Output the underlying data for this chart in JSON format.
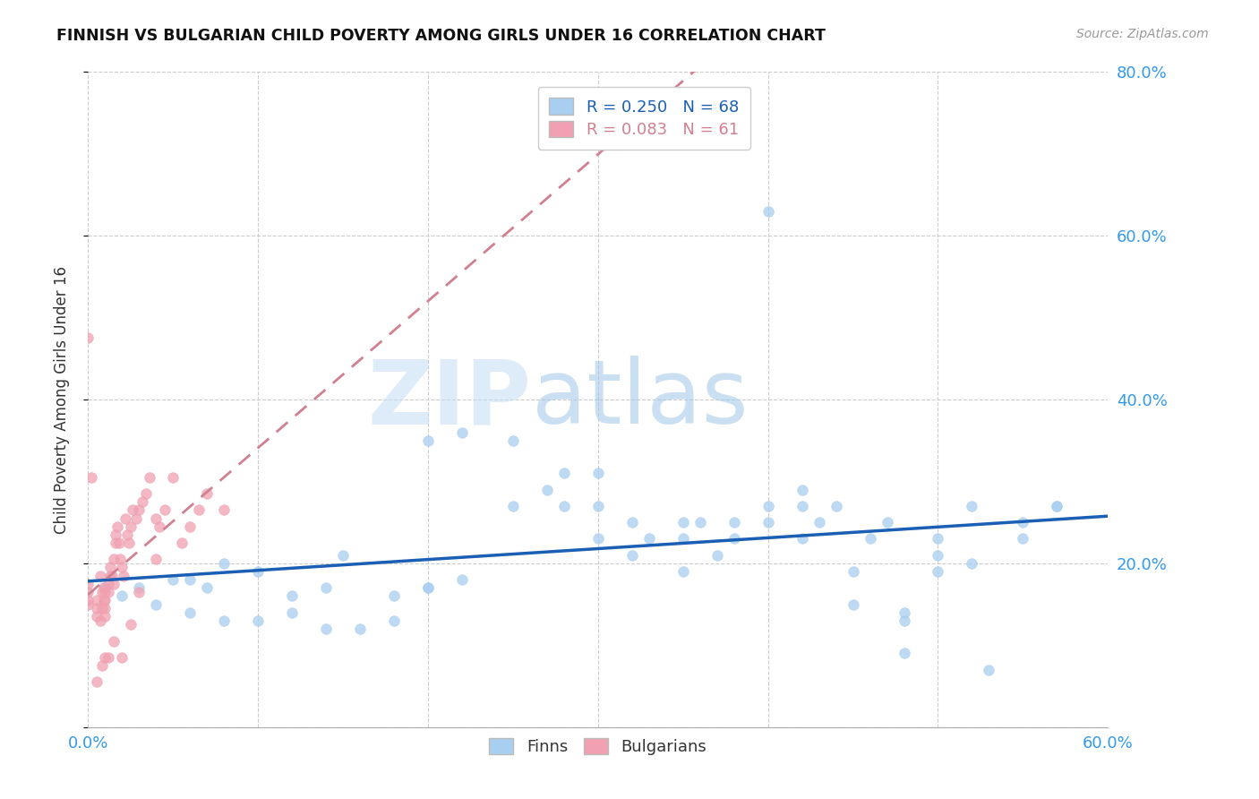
{
  "title": "FINNISH VS BULGARIAN CHILD POVERTY AMONG GIRLS UNDER 16 CORRELATION CHART",
  "source": "Source: ZipAtlas.com",
  "ylabel": "Child Poverty Among Girls Under 16",
  "xlim": [
    0.0,
    0.6
  ],
  "ylim": [
    0.0,
    0.8
  ],
  "xticks": [
    0.0,
    0.1,
    0.2,
    0.3,
    0.4,
    0.5,
    0.6
  ],
  "xticklabels": [
    "0.0%",
    "",
    "",
    "",
    "",
    "",
    "60.0%"
  ],
  "yticks_left": [
    0.0,
    0.2,
    0.4,
    0.6,
    0.8
  ],
  "yticks_right": [
    0.2,
    0.4,
    0.6,
    0.8
  ],
  "yticklabels_right": [
    "20.0%",
    "40.0%",
    "60.0%",
    "80.0%"
  ],
  "background_color": "#ffffff",
  "grid_color": "#cccccc",
  "finn_color": "#a8cef0",
  "bulg_color": "#f0a0b0",
  "finn_line_color": "#1a5fb4",
  "bulg_line_color": "#d08090",
  "scatter_size": 70,
  "finn_x": [
    0.01,
    0.02,
    0.03,
    0.04,
    0.05,
    0.06,
    0.07,
    0.08,
    0.1,
    0.12,
    0.14,
    0.15,
    0.18,
    0.2,
    0.2,
    0.22,
    0.22,
    0.25,
    0.25,
    0.27,
    0.28,
    0.28,
    0.3,
    0.3,
    0.32,
    0.32,
    0.33,
    0.35,
    0.35,
    0.36,
    0.37,
    0.38,
    0.38,
    0.4,
    0.4,
    0.42,
    0.42,
    0.43,
    0.44,
    0.45,
    0.46,
    0.47,
    0.48,
    0.48,
    0.5,
    0.5,
    0.52,
    0.53,
    0.55,
    0.57,
    0.06,
    0.08,
    0.1,
    0.12,
    0.14,
    0.16,
    0.18,
    0.2,
    0.3,
    0.35,
    0.4,
    0.42,
    0.45,
    0.48,
    0.5,
    0.52,
    0.55,
    0.57
  ],
  "finn_y": [
    0.17,
    0.16,
    0.17,
    0.15,
    0.18,
    0.18,
    0.17,
    0.2,
    0.19,
    0.16,
    0.17,
    0.21,
    0.16,
    0.35,
    0.17,
    0.36,
    0.18,
    0.35,
    0.27,
    0.29,
    0.31,
    0.27,
    0.27,
    0.23,
    0.25,
    0.21,
    0.23,
    0.23,
    0.25,
    0.25,
    0.21,
    0.23,
    0.25,
    0.25,
    0.27,
    0.27,
    0.23,
    0.25,
    0.27,
    0.15,
    0.23,
    0.25,
    0.09,
    0.13,
    0.23,
    0.21,
    0.27,
    0.07,
    0.23,
    0.27,
    0.14,
    0.13,
    0.13,
    0.14,
    0.12,
    0.12,
    0.13,
    0.17,
    0.31,
    0.19,
    0.63,
    0.29,
    0.19,
    0.14,
    0.19,
    0.2,
    0.25,
    0.27
  ],
  "bulg_x": [
    0.0,
    0.0,
    0.0,
    0.0,
    0.005,
    0.005,
    0.005,
    0.007,
    0.007,
    0.008,
    0.008,
    0.009,
    0.009,
    0.01,
    0.01,
    0.01,
    0.01,
    0.012,
    0.012,
    0.013,
    0.013,
    0.014,
    0.015,
    0.015,
    0.016,
    0.016,
    0.017,
    0.018,
    0.019,
    0.02,
    0.021,
    0.022,
    0.023,
    0.024,
    0.025,
    0.026,
    0.028,
    0.03,
    0.032,
    0.034,
    0.036,
    0.04,
    0.042,
    0.045,
    0.05,
    0.055,
    0.06,
    0.065,
    0.07,
    0.08,
    0.0,
    0.002,
    0.005,
    0.008,
    0.01,
    0.012,
    0.015,
    0.02,
    0.025,
    0.03,
    0.04
  ],
  "bulg_y": [
    0.165,
    0.175,
    0.155,
    0.15,
    0.155,
    0.145,
    0.135,
    0.13,
    0.185,
    0.165,
    0.145,
    0.17,
    0.155,
    0.165,
    0.145,
    0.135,
    0.155,
    0.165,
    0.175,
    0.185,
    0.195,
    0.185,
    0.175,
    0.205,
    0.225,
    0.235,
    0.245,
    0.225,
    0.205,
    0.195,
    0.185,
    0.255,
    0.235,
    0.225,
    0.245,
    0.265,
    0.255,
    0.265,
    0.275,
    0.285,
    0.305,
    0.255,
    0.245,
    0.265,
    0.305,
    0.225,
    0.245,
    0.265,
    0.285,
    0.265,
    0.475,
    0.305,
    0.055,
    0.075,
    0.085,
    0.085,
    0.105,
    0.085,
    0.125,
    0.165,
    0.205
  ]
}
